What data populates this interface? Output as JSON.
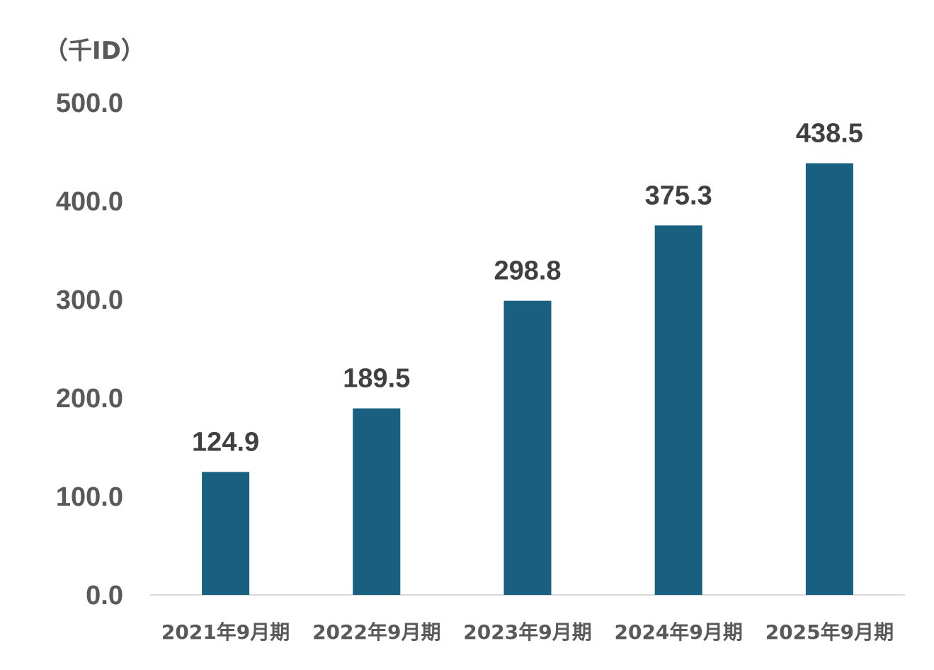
{
  "chart_data": {
    "type": "bar",
    "unit_label": "（千ID）",
    "categories": [
      "2021年9月期",
      "2022年9月期",
      "2023年9月期",
      "2024年9月期",
      "2025年9月期"
    ],
    "values": [
      124.9,
      189.5,
      298.8,
      375.3,
      438.5
    ],
    "data_labels": [
      "124.9",
      "189.5",
      "298.8",
      "375.3",
      "438.5"
    ],
    "y_ticks": [
      "0.0",
      "100.0",
      "200.0",
      "300.0",
      "400.0",
      "500.0"
    ],
    "ylim": [
      0,
      500
    ],
    "grid": false,
    "colors": {
      "bar": "#185F80",
      "axis": "#D9D9D9",
      "tick_text": "#595959",
      "label_text": "#404040"
    }
  }
}
